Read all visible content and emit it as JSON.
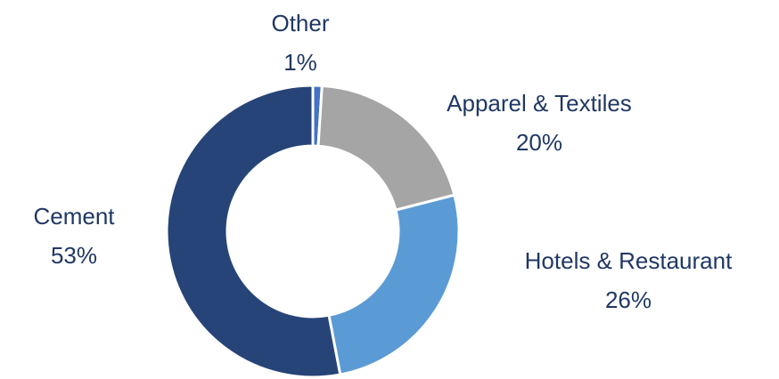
{
  "chart_data": {
    "type": "pie",
    "categories": [
      "Other",
      "Apparel & Textiles",
      "Hotels & Restaurant",
      "Cement"
    ],
    "values": [
      1,
      20,
      26,
      53
    ],
    "value_labels": [
      "1%",
      "20%",
      "26%",
      "53%"
    ],
    "colors": [
      "#4472c4",
      "#a5a5a5",
      "#5b9bd5",
      "#264478"
    ],
    "donut": true
  }
}
